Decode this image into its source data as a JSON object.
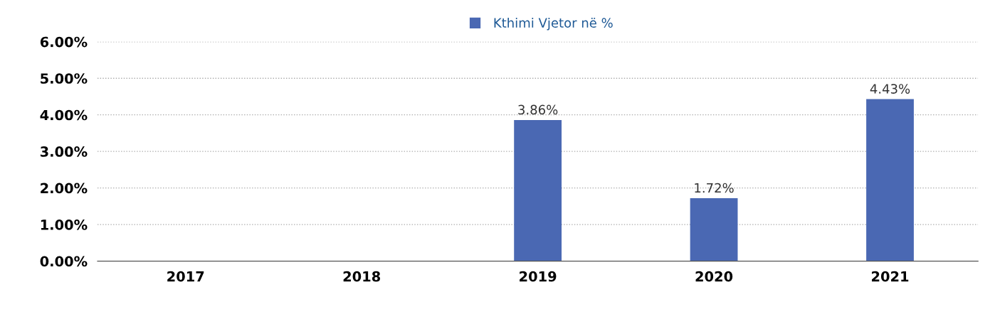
{
  "chart_data": {
    "type": "bar",
    "categories": [
      "2017",
      "2018",
      "2019",
      "2020",
      "2021"
    ],
    "series": [
      {
        "name": "Kthimi Vjetor në %",
        "color": "#4a68b3",
        "values": [
          null,
          null,
          3.86,
          1.72,
          4.43
        ],
        "value_labels": [
          null,
          null,
          "3.86%",
          "1.72%",
          "4.43%"
        ]
      }
    ],
    "ylim": [
      0,
      6
    ],
    "yticks": [
      {
        "value": 0,
        "label": "0.00%"
      },
      {
        "value": 1,
        "label": "1.00%"
      },
      {
        "value": 2,
        "label": "2.00%"
      },
      {
        "value": 3,
        "label": "3.00%"
      },
      {
        "value": 4,
        "label": "4.00%"
      },
      {
        "value": 5,
        "label": "5.00%"
      },
      {
        "value": 6,
        "label": "6.00%"
      }
    ],
    "grid": "y",
    "legend": "top"
  }
}
